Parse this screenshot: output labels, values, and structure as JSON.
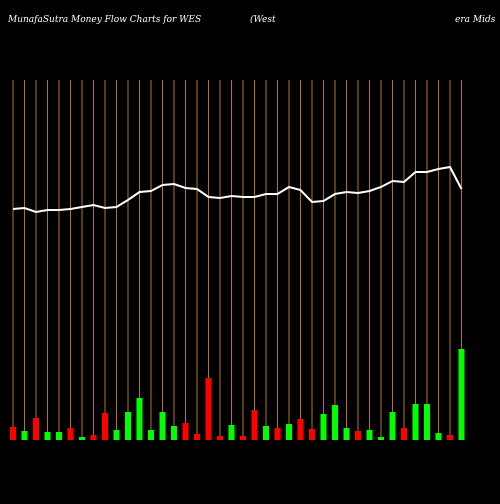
{
  "chart_data": {
    "type": "money-flow",
    "title": "MunafaSutra  Money Flow  Charts for WES",
    "subtitle_parts": [
      "(West",
      "era  Mids"
    ],
    "categories": [
      null,
      null,
      null,
      null,
      null,
      null,
      null,
      null,
      null,
      null,
      null,
      null,
      null,
      null,
      null,
      null,
      null,
      null,
      null,
      null,
      null,
      null,
      null,
      null,
      null,
      null,
      null,
      null,
      null,
      null,
      null,
      null,
      null,
      null,
      null,
      null,
      null,
      null,
      null,
      null
    ],
    "flow": [
      13,
      9,
      22,
      8,
      8,
      12,
      3,
      5,
      27,
      10,
      28,
      42,
      10,
      28,
      14,
      17,
      6,
      62,
      4,
      15,
      4,
      30,
      14,
      12,
      16,
      21,
      11,
      26,
      35,
      12,
      9,
      10,
      3,
      28,
      12,
      36,
      36,
      7,
      5,
      91
    ],
    "flow_colors": [
      "#ff0000",
      "#00ff00",
      "#ff0000",
      "#00ff00",
      "#00ff00",
      "#ff0000",
      "#00ff00",
      "#ff0000",
      "#ff0000",
      "#00ff00",
      "#00ff00",
      "#00ff00",
      "#00ff00",
      "#00ff00",
      "#00ff00",
      "#ff0000",
      "#ff0000",
      "#ff0000",
      "#ff0000",
      "#00ff00",
      "#ff0000",
      "#ff0000",
      "#00ff00",
      "#ff0000",
      "#00ff00",
      "#ff0000",
      "#ff0000",
      "#00ff00",
      "#00ff00",
      "#00ff00",
      "#ff0000",
      "#00ff00",
      "#00ff00",
      "#00ff00",
      "#ff0000",
      "#00ff00",
      "#00ff00",
      "#00ff00",
      "#ff0000",
      "#00ff00"
    ],
    "price": [
      231,
      232,
      228,
      230,
      230,
      231,
      233,
      235,
      232,
      233,
      240,
      248,
      249,
      255,
      256,
      252,
      251,
      243,
      242,
      244,
      243,
      243,
      246,
      246,
      253,
      250,
      238,
      239,
      246,
      248,
      247,
      249,
      253,
      259,
      258,
      268,
      268,
      271,
      273,
      251
    ],
    "line_color": "#ffffff",
    "grid_color": "#b8741a"
  }
}
